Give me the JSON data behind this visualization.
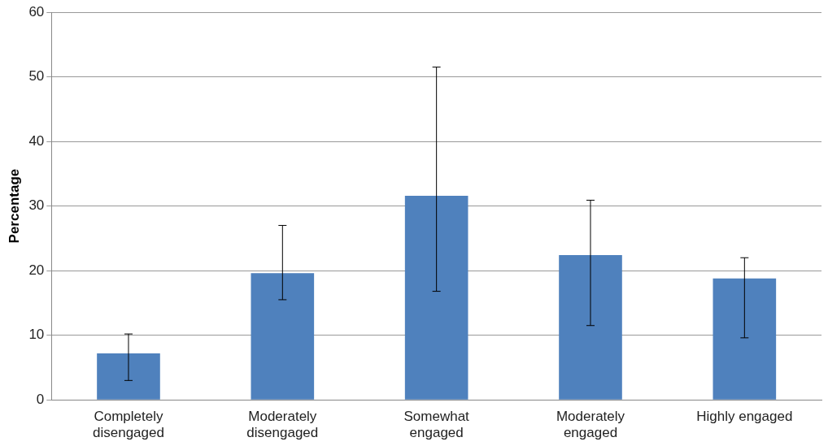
{
  "chart_data": {
    "type": "bar",
    "ylabel": "Percentage",
    "categories": [
      "Completely\ndisengaged",
      "Moderately\ndisengaged",
      "Somewhat\nengaged",
      "Moderately\nengaged",
      "Highly engaged"
    ],
    "values": [
      7.2,
      19.6,
      31.6,
      22.4,
      18.8
    ],
    "errors": [
      [
        3.0,
        10.2
      ],
      [
        15.5,
        27.0
      ],
      [
        16.8,
        51.5
      ],
      [
        11.5,
        30.9
      ],
      [
        9.6,
        22.0
      ]
    ],
    "color": "#4f81bd",
    "ylim": [
      0,
      60
    ],
    "yticks": [
      0,
      10,
      20,
      30,
      40,
      50,
      60
    ],
    "grid": "y",
    "legend": false
  }
}
